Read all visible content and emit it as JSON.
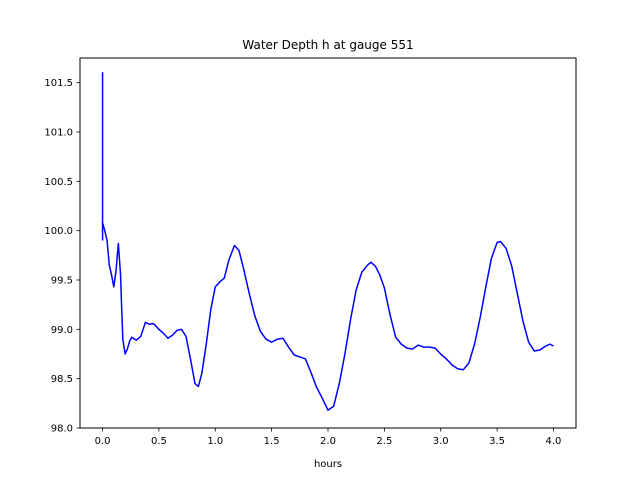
{
  "chart_data": {
    "type": "line",
    "title": "Water Depth h at gauge 551",
    "xlabel": "hours",
    "ylabel": "",
    "xlim": [
      -0.2,
      4.2
    ],
    "ylim": [
      98.0,
      101.75
    ],
    "xticks": [
      0.0,
      0.5,
      1.0,
      1.5,
      2.0,
      2.5,
      3.0,
      3.5,
      4.0
    ],
    "xtick_labels": [
      "0.0",
      "0.5",
      "1.0",
      "1.5",
      "2.0",
      "2.5",
      "3.0",
      "3.5",
      "4.0"
    ],
    "yticks": [
      98.0,
      98.5,
      99.0,
      99.5,
      100.0,
      100.5,
      101.0,
      101.5
    ],
    "ytick_labels": [
      "98.0",
      "98.5",
      "99.0",
      "99.5",
      "100.0",
      "100.5",
      "101.0",
      "101.5"
    ],
    "grid": false,
    "series": [
      {
        "color": "#0000ff",
        "x": [
          0.0,
          0.0,
          0.0,
          0.02,
          0.04,
          0.06,
          0.08,
          0.1,
          0.12,
          0.14,
          0.16,
          0.17,
          0.18,
          0.2,
          0.22,
          0.24,
          0.26,
          0.3,
          0.34,
          0.38,
          0.42,
          0.44,
          0.46,
          0.5,
          0.54,
          0.58,
          0.62,
          0.66,
          0.7,
          0.74,
          0.78,
          0.82,
          0.85,
          0.88,
          0.92,
          0.96,
          1.0,
          1.04,
          1.08,
          1.12,
          1.17,
          1.21,
          1.25,
          1.3,
          1.35,
          1.4,
          1.45,
          1.5,
          1.55,
          1.6,
          1.65,
          1.7,
          1.75,
          1.8,
          1.85,
          1.9,
          1.95,
          2.0,
          2.05,
          2.1,
          2.15,
          2.2,
          2.25,
          2.3,
          2.35,
          2.38,
          2.42,
          2.46,
          2.5,
          2.55,
          2.6,
          2.65,
          2.7,
          2.75,
          2.8,
          2.85,
          2.9,
          2.95,
          3.0,
          3.05,
          3.1,
          3.15,
          3.2,
          3.25,
          3.3,
          3.35,
          3.4,
          3.45,
          3.5,
          3.53,
          3.58,
          3.63,
          3.68,
          3.73,
          3.78,
          3.83,
          3.88,
          3.93,
          3.97,
          4.0
        ],
        "y": [
          99.9,
          101.6,
          100.08,
          100.0,
          99.9,
          99.65,
          99.55,
          99.43,
          99.6,
          99.87,
          99.55,
          99.2,
          98.9,
          98.75,
          98.8,
          98.88,
          98.92,
          98.89,
          98.93,
          99.07,
          99.05,
          99.06,
          99.05,
          99.0,
          98.96,
          98.91,
          98.94,
          98.99,
          99.0,
          98.93,
          98.7,
          98.45,
          98.42,
          98.55,
          98.85,
          99.2,
          99.43,
          99.48,
          99.52,
          99.7,
          99.85,
          99.8,
          99.62,
          99.37,
          99.14,
          98.98,
          98.9,
          98.87,
          98.9,
          98.91,
          98.82,
          98.74,
          98.72,
          98.7,
          98.56,
          98.41,
          98.3,
          98.18,
          98.22,
          98.45,
          98.75,
          99.1,
          99.4,
          99.58,
          99.65,
          99.68,
          99.64,
          99.55,
          99.42,
          99.15,
          98.92,
          98.85,
          98.81,
          98.8,
          98.84,
          98.82,
          98.82,
          98.81,
          98.75,
          98.7,
          98.64,
          98.6,
          98.59,
          98.66,
          98.85,
          99.12,
          99.43,
          99.72,
          99.88,
          99.89,
          99.82,
          99.64,
          99.36,
          99.08,
          98.87,
          98.78,
          98.79,
          98.83,
          98.85,
          98.83
        ]
      }
    ]
  }
}
